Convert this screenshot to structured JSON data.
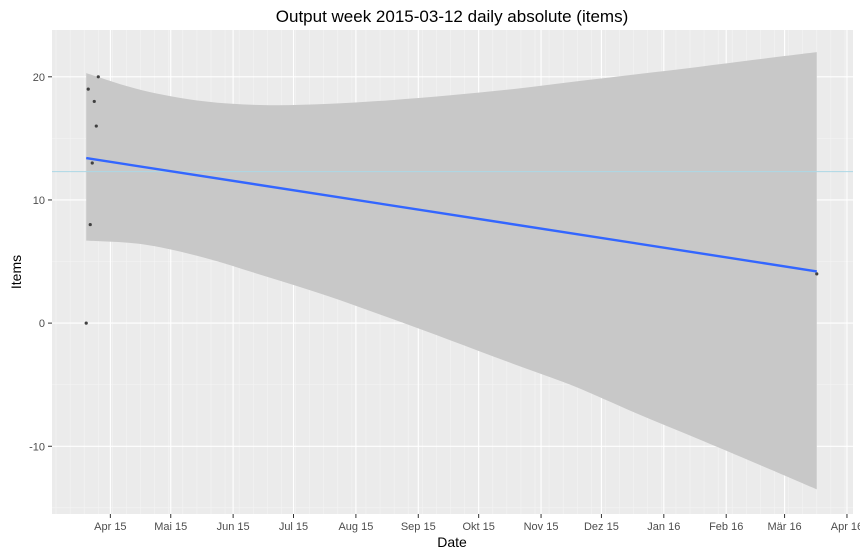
{
  "chart_data": {
    "type": "scatter",
    "title": "Output week 2015-03-12 daily absolute (items)",
    "xlabel": "Date",
    "ylabel": "Items",
    "x_scale": "date",
    "xlim": [
      "2015-03-17",
      "2016-04-18"
    ],
    "ylim": [
      -15.5,
      23.8
    ],
    "x_ticks": [
      {
        "date": "2015-04-15",
        "label": "Apr 15"
      },
      {
        "date": "2015-05-15",
        "label": "Mai 15"
      },
      {
        "date": "2015-06-15",
        "label": "Jun 15"
      },
      {
        "date": "2015-07-15",
        "label": "Jul 15"
      },
      {
        "date": "2015-08-15",
        "label": "Aug 15"
      },
      {
        "date": "2015-09-15",
        "label": "Sep 15"
      },
      {
        "date": "2015-10-15",
        "label": "Okt 15"
      },
      {
        "date": "2015-11-15",
        "label": "Nov 15"
      },
      {
        "date": "2015-12-15",
        "label": "Dez 15"
      },
      {
        "date": "2016-01-15",
        "label": "Jan 16"
      },
      {
        "date": "2016-02-15",
        "label": "Feb 16"
      },
      {
        "date": "2016-03-15",
        "label": "Mär 16"
      },
      {
        "date": "2016-04-15",
        "label": "Apr 16"
      }
    ],
    "y_ticks": [
      {
        "value": 20,
        "label": "20"
      },
      {
        "value": 10,
        "label": "10"
      },
      {
        "value": 0,
        "label": "0"
      },
      {
        "value": -10,
        "label": "-10"
      }
    ],
    "points": [
      {
        "x": "2015-04-03",
        "y": 0
      },
      {
        "x": "2015-04-04",
        "y": 19
      },
      {
        "x": "2015-04-05",
        "y": 8
      },
      {
        "x": "2015-04-06",
        "y": 13
      },
      {
        "x": "2015-04-07",
        "y": 18
      },
      {
        "x": "2015-04-08",
        "y": 16
      },
      {
        "x": "2015-04-09",
        "y": 20
      },
      {
        "x": "2016-03-31",
        "y": 4
      }
    ],
    "trend_line": [
      {
        "x": "2015-04-03",
        "y": 13.4
      },
      {
        "x": "2016-03-31",
        "y": 4.2
      }
    ],
    "confidence_band": [
      {
        "x": "2015-04-03",
        "lower": 6.7,
        "upper": 20.3
      },
      {
        "x": "2015-05-01",
        "lower": 6.4,
        "upper": 18.9
      },
      {
        "x": "2015-06-01",
        "lower": 5.3,
        "upper": 18.0
      },
      {
        "x": "2015-07-01",
        "lower": 3.8,
        "upper": 17.7
      },
      {
        "x": "2015-08-01",
        "lower": 2.2,
        "upper": 17.8
      },
      {
        "x": "2015-09-01",
        "lower": 0.4,
        "upper": 18.1
      },
      {
        "x": "2015-10-01",
        "lower": -1.4,
        "upper": 18.5
      },
      {
        "x": "2015-11-01",
        "lower": -3.3,
        "upper": 19.0
      },
      {
        "x": "2015-12-01",
        "lower": -5.1,
        "upper": 19.6
      },
      {
        "x": "2016-01-01",
        "lower": -7.3,
        "upper": 20.2
      },
      {
        "x": "2016-02-01",
        "lower": -9.4,
        "upper": 20.8
      },
      {
        "x": "2016-03-01",
        "lower": -11.4,
        "upper": 21.4
      },
      {
        "x": "2016-03-31",
        "lower": -13.5,
        "upper": 22.0
      }
    ],
    "reference_line": {
      "y": 12.3
    },
    "grid": true,
    "colors": {
      "panel_background": "#ebebeb",
      "grid_major": "#ffffff",
      "grid_minor": "#f4f4f4",
      "band": "#c8c8c8",
      "trend": "#3366ff",
      "reference": "#add8e6",
      "points": "#404040"
    }
  }
}
